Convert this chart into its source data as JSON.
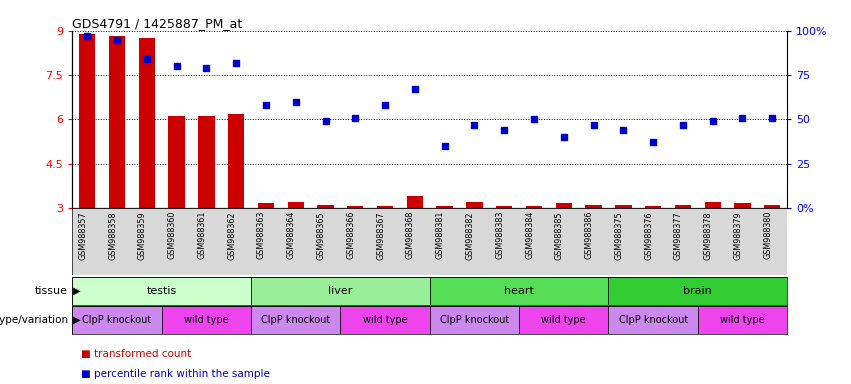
{
  "title": "GDS4791 / 1425887_PM_at",
  "samples": [
    "GSM988357",
    "GSM988358",
    "GSM988359",
    "GSM988360",
    "GSM988361",
    "GSM988362",
    "GSM988363",
    "GSM988364",
    "GSM988365",
    "GSM988366",
    "GSM988367",
    "GSM988368",
    "GSM988381",
    "GSM988382",
    "GSM988383",
    "GSM988384",
    "GSM988385",
    "GSM988386",
    "GSM988375",
    "GSM988376",
    "GSM988377",
    "GSM988378",
    "GSM988379",
    "GSM988380"
  ],
  "bar_values": [
    8.9,
    8.85,
    8.75,
    6.1,
    6.1,
    6.2,
    3.15,
    3.2,
    3.1,
    3.05,
    3.05,
    3.4,
    3.05,
    3.2,
    3.05,
    3.05,
    3.15,
    3.1,
    3.1,
    3.05,
    3.1,
    3.2,
    3.15,
    3.1
  ],
  "dot_values_pct": [
    97,
    95,
    84,
    80,
    79,
    82,
    58,
    60,
    49,
    51,
    58,
    67,
    35,
    47,
    44,
    50,
    40,
    47,
    44,
    37,
    47,
    49,
    51,
    51
  ],
  "bar_color": "#cc0000",
  "dot_color": "#0000cc",
  "ylim_left": [
    3,
    9
  ],
  "ylim_right": [
    0,
    100
  ],
  "yticks_left": [
    3,
    4.5,
    6,
    7.5,
    9
  ],
  "yticks_right": [
    0,
    25,
    50,
    75,
    100
  ],
  "tissues": [
    {
      "label": "testis",
      "start": 0,
      "end": 6,
      "color": "#ccffcc"
    },
    {
      "label": "liver",
      "start": 6,
      "end": 12,
      "color": "#99ee99"
    },
    {
      "label": "heart",
      "start": 12,
      "end": 18,
      "color": "#55dd55"
    },
    {
      "label": "brain",
      "start": 18,
      "end": 24,
      "color": "#33cc33"
    }
  ],
  "genotypes": [
    {
      "label": "ClpP knockout",
      "start": 0,
      "end": 3,
      "color": "#cc88ee"
    },
    {
      "label": "wild type",
      "start": 3,
      "end": 6,
      "color": "#ee44ee"
    },
    {
      "label": "ClpP knockout",
      "start": 6,
      "end": 9,
      "color": "#cc88ee"
    },
    {
      "label": "wild type",
      "start": 9,
      "end": 12,
      "color": "#ee44ee"
    },
    {
      "label": "ClpP knockout",
      "start": 12,
      "end": 15,
      "color": "#cc88ee"
    },
    {
      "label": "wild type",
      "start": 15,
      "end": 18,
      "color": "#ee44ee"
    },
    {
      "label": "ClpP knockout",
      "start": 18,
      "end": 21,
      "color": "#cc88ee"
    },
    {
      "label": "wild type",
      "start": 21,
      "end": 24,
      "color": "#ee44ee"
    }
  ],
  "legend_bar": "transformed count",
  "legend_dot": "percentile rank within the sample",
  "tissue_row_label": "tissue",
  "genotype_row_label": "genotype/variation",
  "bar_width": 0.55,
  "bg_color": "#d8d8d8",
  "right_tick_labels": [
    "0%",
    "25",
    "50",
    "75",
    "100%"
  ]
}
